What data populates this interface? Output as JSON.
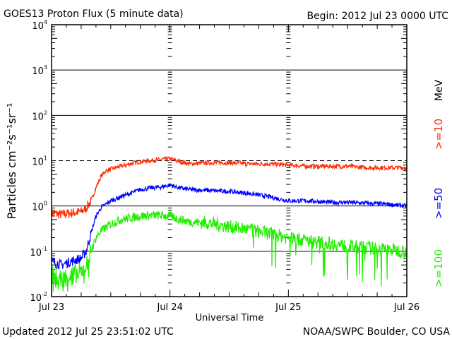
{
  "chart_data": {
    "type": "line",
    "title": "GOES13 Proton Flux (5 minute data)",
    "begin_label": "Begin: 2012 Jul 23 0000 UTC",
    "xlabel": "Universal Time",
    "ylabel": "Particles cm⁻²s⁻¹sr⁻¹",
    "yscale": "log",
    "ylim": [
      0.01,
      10000
    ],
    "xlim_hours": [
      0,
      72
    ],
    "y_ticks": [
      {
        "base": "10",
        "exp": "4",
        "value": 10000
      },
      {
        "base": "10",
        "exp": "3",
        "value": 1000
      },
      {
        "base": "10",
        "exp": "2",
        "value": 100
      },
      {
        "base": "10",
        "exp": "1",
        "value": 10
      },
      {
        "base": "10",
        "exp": "0",
        "value": 1
      },
      {
        "base": "10",
        "exp": "-1",
        "value": 0.1
      },
      {
        "base": "10",
        "exp": "-2",
        "value": 0.01
      }
    ],
    "x_ticks": [
      {
        "label": "Jul 23",
        "hour": 0
      },
      {
        "label": "Jul 24",
        "hour": 24
      },
      {
        "label": "Jul 25",
        "hour": 48
      },
      {
        "label": "Jul 26",
        "hour": 72
      }
    ],
    "threshold": 10,
    "units_label": "MeV",
    "hours": [
      0,
      2,
      4,
      6,
      7,
      8,
      9,
      10,
      11,
      12,
      14,
      16,
      18,
      20,
      22,
      24,
      26,
      28,
      32,
      36,
      40,
      44,
      48,
      52,
      56,
      60,
      64,
      68,
      72
    ],
    "series": [
      {
        "name": ">=10",
        "color": "#ff2a00",
        "values": [
          0.7,
          0.65,
          0.7,
          0.75,
          0.9,
          1.3,
          2.5,
          4.5,
          6,
          6.5,
          7.5,
          8.5,
          9.5,
          10,
          10.5,
          11,
          9.5,
          8.5,
          9,
          9,
          8.5,
          8.5,
          8,
          7.5,
          7.5,
          7.5,
          7,
          7,
          7
        ]
      },
      {
        "name": ">=50",
        "color": "#0000ff",
        "values": [
          0.06,
          0.05,
          0.06,
          0.07,
          0.1,
          0.25,
          0.6,
          0.9,
          1.1,
          1.3,
          1.6,
          1.9,
          2.3,
          2.5,
          2.6,
          2.9,
          2.5,
          2.3,
          2.2,
          2.1,
          1.9,
          1.6,
          1.3,
          1.3,
          1.2,
          1.2,
          1.15,
          1.1,
          1.0
        ]
      },
      {
        "name": ">=100",
        "color": "#22ee00",
        "values": [
          0.03,
          0.025,
          0.03,
          0.035,
          0.05,
          0.1,
          0.2,
          0.28,
          0.33,
          0.4,
          0.5,
          0.55,
          0.6,
          0.62,
          0.62,
          0.6,
          0.5,
          0.45,
          0.42,
          0.35,
          0.3,
          0.25,
          0.2,
          0.17,
          0.15,
          0.13,
          0.12,
          0.11,
          0.1
        ]
      }
    ]
  },
  "footer": {
    "updated": "Updated 2012 Jul 25 23:51:02 UTC",
    "credit": "NOAA/SWPC Boulder, CO USA"
  }
}
